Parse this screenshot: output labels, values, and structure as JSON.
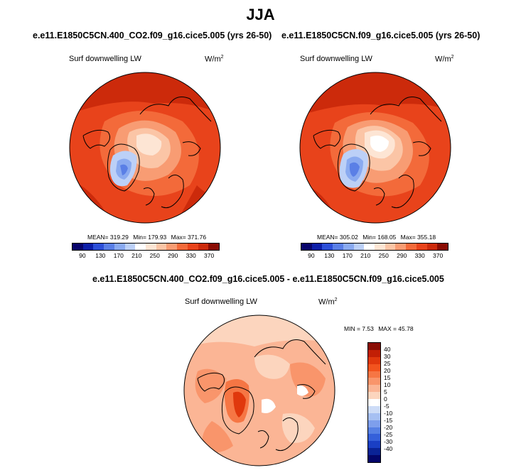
{
  "title": "JJA",
  "colors": {
    "abs_scale": [
      "#08046b",
      "#0d1fa8",
      "#2d4fd8",
      "#5a7fe6",
      "#8aaaf0",
      "#bcd0f7",
      "#ffffff",
      "#fde5d4",
      "#fbc5a6",
      "#f89c73",
      "#f36a3a",
      "#e8431b",
      "#cc2a0b",
      "#8a0c03"
    ],
    "diff_scale": [
      "#8a0c03",
      "#c21f05",
      "#e0380d",
      "#f2541e",
      "#f67644",
      "#f9956b",
      "#fbb595",
      "#fcd5be",
      "#ffffff",
      "#cddcf7",
      "#a6c0f2",
      "#7e9fec",
      "#5680e4",
      "#3560da",
      "#1a3fc4",
      "#0a2396",
      "#03066a"
    ]
  },
  "panels": [
    {
      "title": "e.e11.E1850C5CN.400_CO2.f09_g16.cice5.005 (yrs 26-50)",
      "variable": "Surf downwelling LW",
      "units": "W/m",
      "units_exp": "2",
      "stats": {
        "mean": "MEAN= 319.29",
        "min": "Min= 179.93",
        "max": "Max= 371.76"
      },
      "colorbar_ticks": [
        "90",
        "130",
        "170",
        "210",
        "250",
        "290",
        "330",
        "370"
      ]
    },
    {
      "title": "e.e11.E1850C5CN.f09_g16.cice5.005 (yrs 26-50)",
      "variable": "Surf downwelling LW",
      "units": "W/m",
      "units_exp": "2",
      "stats": {
        "mean": "MEAN= 305.02",
        "min": "Min= 168.05",
        "max": "Max= 355.18"
      },
      "colorbar_ticks": [
        "90",
        "130",
        "170",
        "210",
        "250",
        "290",
        "330",
        "370"
      ]
    }
  ],
  "difference": {
    "title": "e.e11.E1850C5CN.400_CO2.f09_g16.cice5.005 - e.e11.E1850C5CN.f09_g16.cice5.005",
    "variable": "Surf downwelling LW",
    "units": "W/m",
    "units_exp": "2",
    "stats": {
      "min": "MIN =   7.53",
      "max": "MAX =  45.78"
    },
    "colorbar_ticks": [
      "40",
      "30",
      "25",
      "20",
      "15",
      "10",
      "5",
      "0",
      "-5",
      "-10",
      "-15",
      "-20",
      "-25",
      "-30",
      "-40"
    ]
  }
}
